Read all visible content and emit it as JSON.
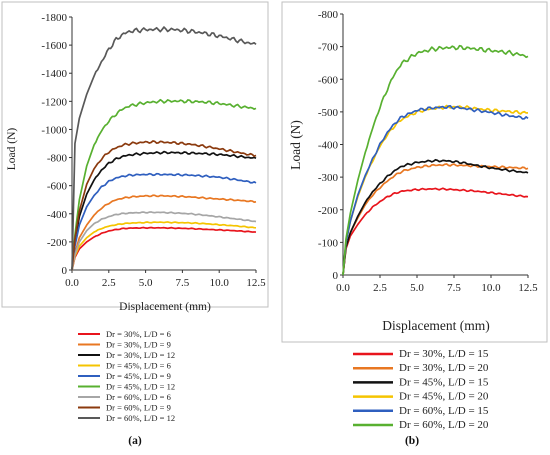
{
  "charts": [
    {
      "caption": "(a)",
      "chart_data": {
        "type": "line",
        "xlabel": "Displacement (mm)",
        "ylabel": "Load (N)",
        "xlim": [
          0,
          12.5
        ],
        "ylim": [
          0,
          -1800
        ],
        "x_ticks": [
          "0.0",
          "2.5",
          "5.0",
          "7.5",
          "10.0",
          "12.5"
        ],
        "y_ticks": [
          "0",
          "-200",
          "-400",
          "-600",
          "-800",
          "-1000",
          "-1200",
          "-1400",
          "-1600",
          "-1800"
        ],
        "grid": false,
        "legend_position": "below",
        "x": [
          0,
          0.2,
          0.5,
          1,
          1.5,
          2,
          2.5,
          3,
          3.5,
          4,
          5,
          6,
          7,
          8,
          9,
          10,
          11,
          12,
          12.5
        ],
        "series": [
          {
            "name": "Dr = 30%, L/D = 6",
            "color": "#e8141c",
            "values": [
              0,
              -90,
              -150,
              -200,
              -235,
              -260,
              -278,
              -288,
              -295,
              -298,
              -300,
              -300,
              -298,
              -295,
              -290,
              -285,
              -280,
              -273,
              -270
            ]
          },
          {
            "name": "Dr = 30%, L/D = 9",
            "color": "#e87722",
            "values": [
              0,
              -120,
              -230,
              -320,
              -390,
              -440,
              -475,
              -500,
              -512,
              -520,
              -527,
              -528,
              -525,
              -520,
              -512,
              -505,
              -498,
              -490,
              -485
            ]
          },
          {
            "name": "Dr = 30%, L/D = 12",
            "color": "#111111",
            "values": [
              0,
              -200,
              -380,
              -540,
              -640,
              -710,
              -760,
              -790,
              -810,
              -820,
              -830,
              -835,
              -835,
              -832,
              -828,
              -822,
              -812,
              -800,
              -795
            ]
          },
          {
            "name": "Dr = 45%, L/D = 6",
            "color": "#f5c400",
            "values": [
              0,
              -100,
              -170,
              -230,
              -270,
              -295,
              -312,
              -322,
              -330,
              -334,
              -338,
              -340,
              -338,
              -335,
              -330,
              -322,
              -315,
              -305,
              -300
            ]
          },
          {
            "name": "Dr = 45%, L/D = 9",
            "color": "#2f5fbf",
            "values": [
              0,
              -170,
              -320,
              -450,
              -530,
              -590,
              -630,
              -655,
              -668,
              -675,
              -680,
              -680,
              -678,
              -675,
              -668,
              -660,
              -645,
              -628,
              -620
            ]
          },
          {
            "name": "Dr = 45%, L/D = 12",
            "color": "#58b030",
            "values": [
              0,
              -250,
              -500,
              -740,
              -890,
              -990,
              -1060,
              -1110,
              -1150,
              -1170,
              -1190,
              -1200,
              -1202,
              -1200,
              -1195,
              -1185,
              -1170,
              -1155,
              -1150
            ]
          },
          {
            "name": "Dr = 60%, L/D = 6",
            "color": "#a6a6a6",
            "values": [
              0,
              -110,
              -200,
              -280,
              -330,
              -360,
              -380,
              -395,
              -402,
              -406,
              -410,
              -410,
              -406,
              -400,
              -390,
              -378,
              -365,
              -352,
              -345
            ]
          },
          {
            "name": "Dr = 60%, L/D = 9",
            "color": "#8b3a0e",
            "values": [
              0,
              -220,
              -420,
              -610,
              -720,
              -790,
              -840,
              -870,
              -890,
              -900,
              -910,
              -910,
              -905,
              -895,
              -880,
              -862,
              -842,
              -822,
              -815
            ]
          },
          {
            "name": "Dr = 60%, L/D = 12",
            "color": "#595959",
            "values": [
              0,
              -900,
              -1080,
              -1250,
              -1380,
              -1480,
              -1570,
              -1640,
              -1680,
              -1700,
              -1710,
              -1712,
              -1710,
              -1700,
              -1685,
              -1665,
              -1640,
              -1615,
              -1605
            ]
          }
        ]
      }
    },
    {
      "caption": "(b)",
      "chart_data": {
        "type": "line",
        "xlabel": "Displacement (mm)",
        "ylabel": "Load (N)",
        "xlim": [
          0,
          12.5
        ],
        "ylim": [
          0,
          -800
        ],
        "x_ticks": [
          "0.0",
          "2.5",
          "5.0",
          "7.5",
          "10.0",
          "12.5"
        ],
        "y_ticks": [
          "0",
          "-100",
          "-200",
          "-300",
          "-400",
          "-500",
          "-600",
          "-700",
          "-800"
        ],
        "grid": false,
        "legend_position": "below",
        "x": [
          0,
          0.2,
          0.5,
          1,
          1.5,
          2,
          2.5,
          3,
          3.5,
          4,
          5,
          6,
          7,
          8,
          9,
          10,
          11,
          12,
          12.5
        ],
        "series": [
          {
            "name": "Dr = 30%, L/D = 15",
            "color": "#e8141c",
            "values": [
              0,
              -80,
              -120,
              -155,
              -185,
              -208,
              -225,
              -240,
              -250,
              -257,
              -262,
              -264,
              -263,
              -260,
              -257,
              -252,
              -247,
              -242,
              -240
            ]
          },
          {
            "name": "Dr = 30%, L/D = 20",
            "color": "#e87722",
            "values": [
              0,
              -85,
              -130,
              -175,
              -215,
              -245,
              -268,
              -288,
              -305,
              -318,
              -330,
              -336,
              -338,
              -336,
              -334,
              -332,
              -330,
              -328,
              -327
            ]
          },
          {
            "name": "Dr = 45%, L/D = 15",
            "color": "#111111",
            "values": [
              0,
              -85,
              -130,
              -180,
              -222,
              -255,
              -280,
              -302,
              -320,
              -334,
              -345,
              -350,
              -350,
              -345,
              -336,
              -328,
              -322,
              -316,
              -313
            ]
          },
          {
            "name": "Dr = 45%, L/D = 20",
            "color": "#f5c400",
            "values": [
              0,
              -100,
              -165,
              -240,
              -300,
              -350,
              -395,
              -430,
              -458,
              -478,
              -500,
              -510,
              -515,
              -515,
              -510,
              -505,
              -502,
              -498,
              -497
            ]
          },
          {
            "name": "Dr = 60%, L/D = 15",
            "color": "#2f5fbf",
            "values": [
              0,
              -100,
              -165,
              -245,
              -305,
              -355,
              -400,
              -437,
              -465,
              -485,
              -505,
              -512,
              -515,
              -512,
              -505,
              -498,
              -490,
              -483,
              -480
            ]
          },
          {
            "name": "Dr = 60%, L/D = 20",
            "color": "#58b030",
            "values": [
              0,
              -110,
              -190,
              -290,
              -375,
              -450,
              -515,
              -570,
              -618,
              -650,
              -680,
              -692,
              -697,
              -697,
              -693,
              -688,
              -683,
              -675,
              -670
            ]
          }
        ]
      }
    }
  ]
}
